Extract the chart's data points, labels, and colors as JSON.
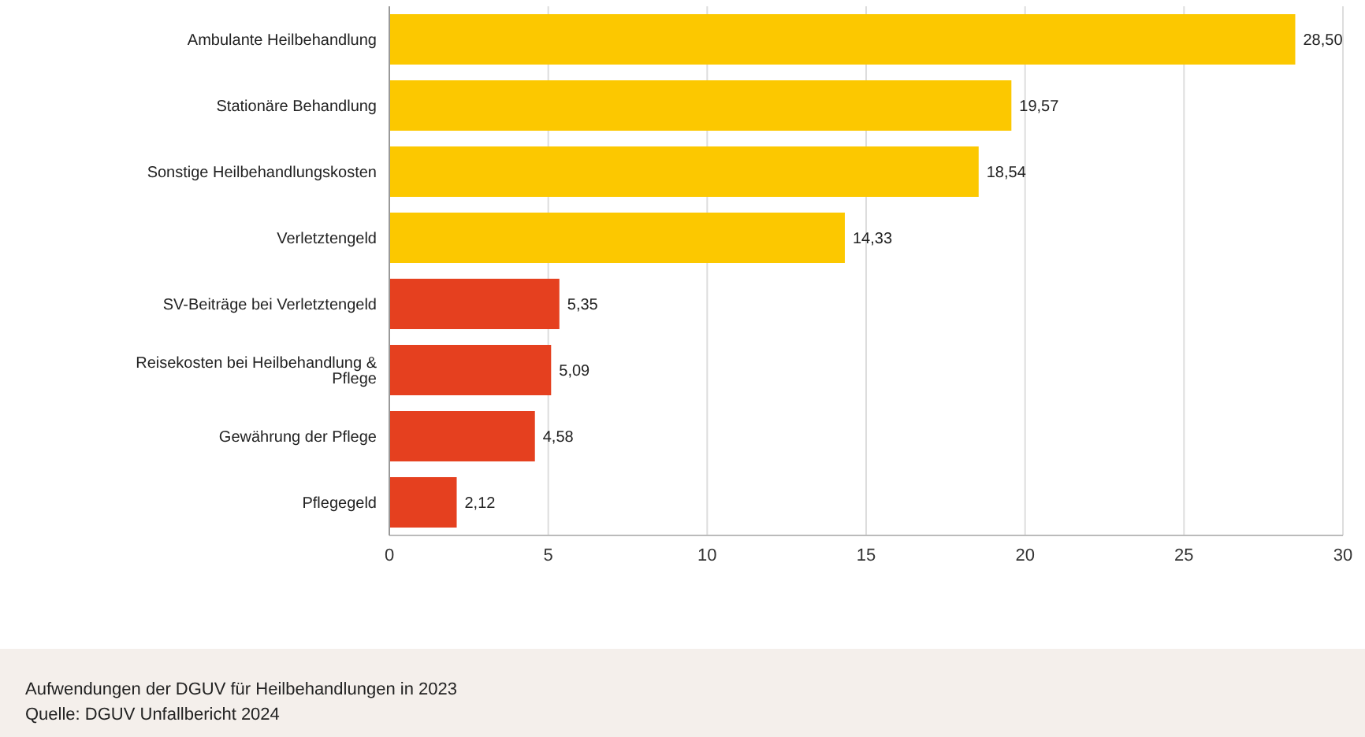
{
  "chart_data": {
    "type": "bar",
    "orientation": "horizontal",
    "categories": [
      "Ambulante Heilbehandlung",
      "Stationäre Behandlung",
      "Sonstige Heilbehandlungskosten",
      "Verletztengeld",
      "SV-Beiträge bei Verletztengeld",
      "Reisekosten bei Heilbehandlung & Pflege",
      "Gewährung der Pflege",
      "Pflegegeld"
    ],
    "values": [
      28.5,
      19.57,
      18.54,
      14.33,
      5.35,
      5.09,
      4.58,
      2.12
    ],
    "value_labels": [
      "28,50",
      "19,57",
      "18,54",
      "14,33",
      "5,35",
      "5,09",
      "4,58",
      "2,12"
    ],
    "colors": [
      "#fcc800",
      "#fcc800",
      "#fcc800",
      "#fcc800",
      "#e5401f",
      "#e5401f",
      "#e5401f",
      "#e5401f"
    ],
    "xlim": [
      0,
      30
    ],
    "xticks": [
      0,
      5,
      10,
      15,
      20,
      25,
      30
    ],
    "grid": "x",
    "legend": false,
    "annotations": [
      "Aufwendungen der DGUV für Heilbehandlungen in 2023",
      "Quelle: DGUV Unfallbericht 2024"
    ]
  }
}
